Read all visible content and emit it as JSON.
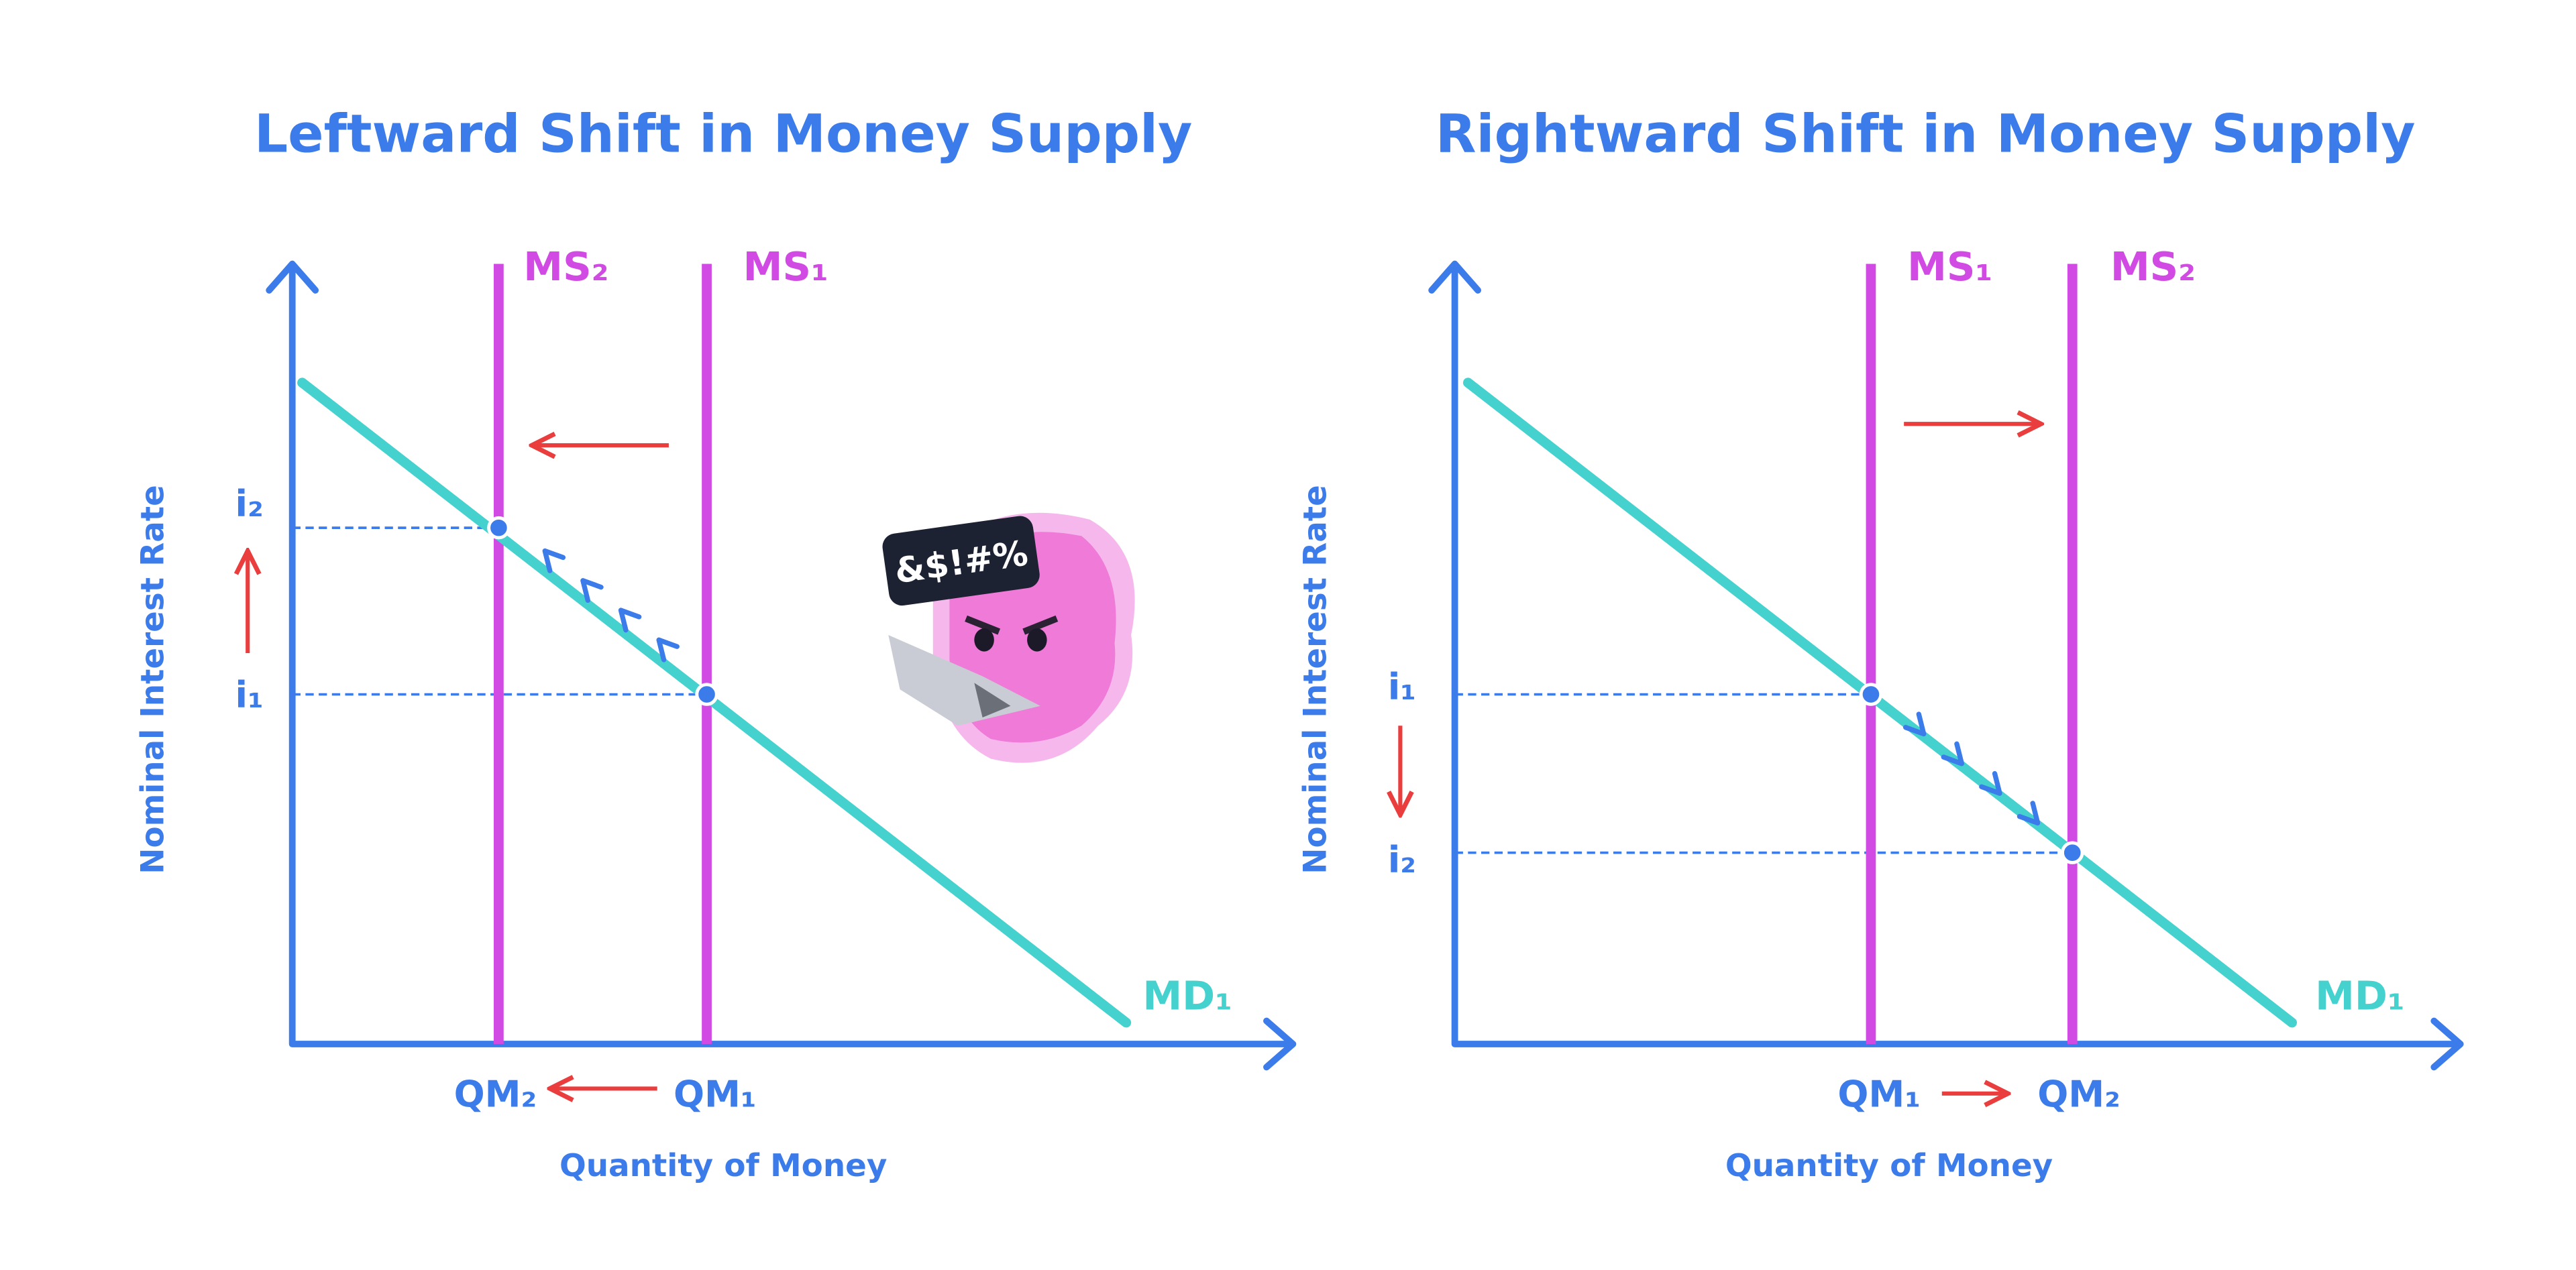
{
  "panels": [
    {
      "title": "Leftward Shift in Money Supply",
      "y_axis": "Nominal Interest Rate",
      "x_axis": "Quantity of Money",
      "ms_left": "MS₂",
      "ms_right": "MS₁",
      "md": "MD₁",
      "rate_top": "i₂",
      "rate_bottom": "i₁",
      "q_left": "QM₂",
      "q_right": "QM₁"
    },
    {
      "title": "Rightward Shift in Money Supply",
      "y_axis": "Nominal Interest Rate",
      "x_axis": "Quantity of Money",
      "ms_left": "MS₁",
      "ms_right": "MS₂",
      "md": "MD₁",
      "rate_top": "i₁",
      "rate_bottom": "i₂",
      "q_left": "QM₁",
      "q_right": "QM₂"
    }
  ],
  "mascot": {
    "speech": "&$!#%"
  }
}
